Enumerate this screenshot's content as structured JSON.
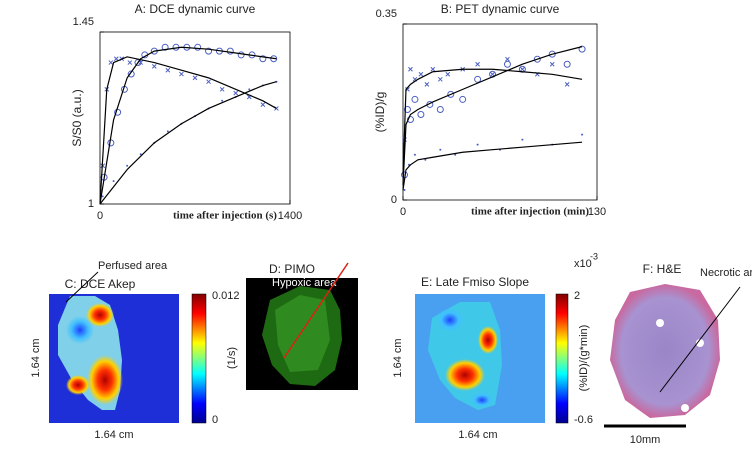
{
  "chart_data": [
    {
      "type": "scatter",
      "title": "A: DCE dynamic curve",
      "ylabel": "S/S0 (a.u.)",
      "xlabel": "time after injection (s)",
      "xlim": [
        0,
        1400
      ],
      "xticks": [
        0,
        1400
      ],
      "ylim": [
        1,
        1.45
      ],
      "yticks": [
        1,
        1.45
      ],
      "series": [
        {
          "marker": "o",
          "color": "#4a5fc1",
          "x": [
            30,
            80,
            130,
            180,
            230,
            280,
            330,
            400,
            480,
            560,
            640,
            720,
            800,
            880,
            960,
            1040,
            1120,
            1200,
            1280
          ],
          "values": [
            1.07,
            1.16,
            1.24,
            1.3,
            1.34,
            1.37,
            1.39,
            1.4,
            1.41,
            1.41,
            1.41,
            1.41,
            1.4,
            1.4,
            1.4,
            1.39,
            1.39,
            1.38,
            1.38
          ]
        },
        {
          "marker": "x",
          "color": "#4a5fc1",
          "x": [
            20,
            50,
            80,
            120,
            160,
            220,
            300,
            400,
            500,
            600,
            700,
            800,
            900,
            1000,
            1100,
            1200,
            1300
          ],
          "values": [
            1.1,
            1.3,
            1.37,
            1.38,
            1.38,
            1.37,
            1.37,
            1.36,
            1.35,
            1.34,
            1.33,
            1.32,
            1.3,
            1.29,
            1.28,
            1.26,
            1.25
          ]
        },
        {
          "marker": "dot",
          "color": "#4a5fc1",
          "x": [
            20,
            100,
            200,
            300,
            400,
            500,
            600,
            700,
            800,
            900,
            1000,
            1100,
            1200,
            1300
          ],
          "values": [
            1.02,
            1.06,
            1.1,
            1.13,
            1.16,
            1.19,
            1.21,
            1.23,
            1.25,
            1.27,
            1.28,
            1.3,
            1.31,
            1.32
          ]
        },
        {
          "marker": "line",
          "color": "#000000",
          "x": [
            0,
            50,
            100,
            200,
            400,
            600,
            800,
            1000,
            1200,
            1300
          ],
          "values": [
            1,
            1.3,
            1.37,
            1.385,
            1.37,
            1.35,
            1.33,
            1.3,
            1.27,
            1.25
          ]
        },
        {
          "marker": "line",
          "color": "#000000",
          "x": [
            0,
            100,
            200,
            300,
            400,
            600,
            800,
            1000,
            1200,
            1300
          ],
          "values": [
            1,
            1.22,
            1.33,
            1.38,
            1.4,
            1.41,
            1.405,
            1.395,
            1.385,
            1.38
          ]
        },
        {
          "marker": "line",
          "color": "#000000",
          "x": [
            0,
            200,
            400,
            600,
            800,
            1000,
            1200,
            1300
          ],
          "values": [
            1,
            1.09,
            1.16,
            1.21,
            1.25,
            1.28,
            1.31,
            1.32
          ]
        }
      ]
    },
    {
      "type": "scatter",
      "title": "B: PET dynamic curve",
      "ylabel": "(%ID)/g",
      "xlabel": "time after injection (min)",
      "xlim": [
        0,
        130
      ],
      "xticks": [
        0,
        130
      ],
      "ylim": [
        0,
        0.35
      ],
      "yticks": [
        0,
        0.35
      ],
      "series": [
        {
          "marker": "x",
          "color": "#4a5fc1",
          "x": [
            1,
            3,
            5,
            8,
            12,
            16,
            20,
            25,
            30,
            40,
            50,
            60,
            70,
            80,
            90,
            100,
            110
          ],
          "values": [
            0.12,
            0.22,
            0.26,
            0.24,
            0.25,
            0.23,
            0.26,
            0.24,
            0.25,
            0.26,
            0.27,
            0.25,
            0.28,
            0.26,
            0.25,
            0.27,
            0.23
          ]
        },
        {
          "marker": "o",
          "color": "#4a5fc1",
          "x": [
            1,
            3,
            5,
            8,
            12,
            18,
            25,
            32,
            40,
            50,
            60,
            70,
            80,
            90,
            100,
            110,
            120
          ],
          "values": [
            0.05,
            0.18,
            0.16,
            0.2,
            0.17,
            0.19,
            0.18,
            0.21,
            0.2,
            0.24,
            0.25,
            0.27,
            0.26,
            0.28,
            0.29,
            0.27,
            0.3
          ]
        },
        {
          "marker": "dot",
          "color": "#4a5fc1",
          "x": [
            1,
            4,
            8,
            15,
            25,
            35,
            50,
            65,
            80,
            100,
            120
          ],
          "values": [
            0.02,
            0.07,
            0.09,
            0.08,
            0.1,
            0.09,
            0.11,
            0.1,
            0.12,
            0.11,
            0.13
          ]
        },
        {
          "marker": "line",
          "color": "#000000",
          "x": [
            0,
            2,
            5,
            10,
            20,
            40,
            60,
            80,
            100,
            120
          ],
          "values": [
            0.05,
            0.22,
            0.23,
            0.24,
            0.255,
            0.26,
            0.26,
            0.255,
            0.25,
            0.24
          ]
        },
        {
          "marker": "line",
          "color": "#000000",
          "x": [
            0,
            2,
            5,
            10,
            20,
            40,
            60,
            80,
            100,
            120
          ],
          "values": [
            0.03,
            0.15,
            0.17,
            0.18,
            0.195,
            0.22,
            0.245,
            0.27,
            0.29,
            0.305
          ]
        },
        {
          "marker": "line",
          "color": "#000000",
          "x": [
            0,
            2,
            5,
            10,
            20,
            40,
            60,
            80,
            100,
            120
          ],
          "values": [
            0.02,
            0.06,
            0.07,
            0.08,
            0.085,
            0.095,
            0.1,
            0.105,
            0.11,
            0.115
          ]
        }
      ]
    }
  ],
  "panels": [
    {
      "label": "C: DCE Akep",
      "annotation": "Perfused area",
      "colorbar_ticks": [
        "0.012",
        "0"
      ],
      "colorbar_label": "(1/s)",
      "x_size": "1.64 cm",
      "y_size": "1.64 cm"
    },
    {
      "label": "D: PIMO",
      "annotation": "Hypoxic area"
    },
    {
      "label": "E: Late Fmiso Slope",
      "colorbar_ticks": [
        "2",
        "-0.6"
      ],
      "colorbar_scale": "x10",
      "colorbar_exponent": "-3",
      "colorbar_label": "(%ID)/(g*min)",
      "x_size": "1.64 cm",
      "y_size": "1.64 cm"
    },
    {
      "label": "F: H&E",
      "annotation": "Necrotic area",
      "scale_bar": "10mm"
    }
  ]
}
